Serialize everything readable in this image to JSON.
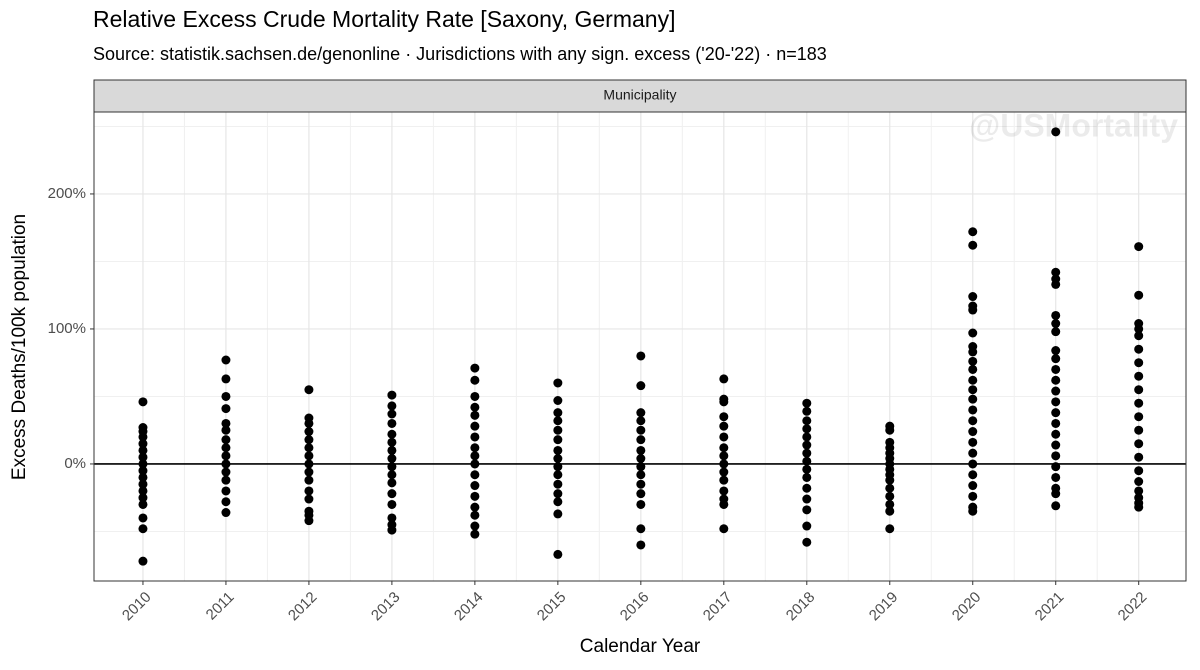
{
  "chart_data": {
    "type": "scatter",
    "title": "Relative Excess Crude Mortality Rate [Saxony, Germany]",
    "subtitle": "Source: statistik.sachsen.de/genonline · Jurisdictions with any sign. excess ('20-'22) · n=183",
    "facet_label": "Municipality",
    "watermark": "@USMortality",
    "x_label": "Calendar Year",
    "y_label": "Excess Deaths/100k population",
    "color": "#000000",
    "grid": true,
    "hline": 0,
    "xlim": [
      2009.41,
      2022.57
    ],
    "ylim": [
      -86.7,
      260.7
    ],
    "xticks": [
      2010,
      2011,
      2012,
      2013,
      2014,
      2015,
      2016,
      2017,
      2018,
      2019,
      2020,
      2021,
      2022
    ],
    "yticks": [
      {
        "value": 0,
        "label": "0%"
      },
      {
        "value": 100,
        "label": "100%"
      },
      {
        "value": 200,
        "label": "200%"
      }
    ],
    "y_minor_ticks": [
      -50,
      50,
      150,
      250
    ],
    "groups": [
      {
        "x": 2010,
        "values": [
          46,
          27,
          24,
          20,
          15,
          10,
          5,
          0,
          -5,
          -10,
          -15,
          -20,
          -25,
          -30,
          -40,
          -48,
          -72
        ]
      },
      {
        "x": 2011,
        "values": [
          77,
          63,
          50,
          41,
          30,
          25,
          18,
          12,
          6,
          0,
          -6,
          -12,
          -20,
          -28,
          -36
        ]
      },
      {
        "x": 2012,
        "values": [
          55,
          34,
          30,
          24,
          18,
          12,
          6,
          0,
          -6,
          -12,
          -20,
          -26,
          -35,
          -38,
          -42
        ]
      },
      {
        "x": 2013,
        "values": [
          51,
          43,
          37,
          30,
          22,
          16,
          10,
          4,
          -2,
          -8,
          -14,
          -22,
          -30,
          -40,
          -45,
          -49
        ]
      },
      {
        "x": 2014,
        "values": [
          71,
          62,
          50,
          42,
          36,
          28,
          20,
          12,
          6,
          0,
          -8,
          -16,
          -24,
          -32,
          -38,
          -46,
          -52
        ]
      },
      {
        "x": 2015,
        "values": [
          60,
          47,
          38,
          32,
          25,
          18,
          10,
          4,
          -2,
          -8,
          -15,
          -22,
          -28,
          -37,
          -67
        ]
      },
      {
        "x": 2016,
        "values": [
          80,
          58,
          38,
          32,
          25,
          18,
          10,
          4,
          -2,
          -8,
          -15,
          -22,
          -30,
          -48,
          -60
        ]
      },
      {
        "x": 2017,
        "values": [
          63,
          48,
          46,
          35,
          28,
          20,
          12,
          6,
          0,
          -6,
          -12,
          -20,
          -26,
          -30,
          -48
        ]
      },
      {
        "x": 2018,
        "values": [
          45,
          39,
          32,
          26,
          20,
          14,
          8,
          2,
          -4,
          -10,
          -18,
          -26,
          -34,
          -46,
          -58
        ]
      },
      {
        "x": 2019,
        "values": [
          28,
          25,
          16,
          12,
          8,
          4,
          0,
          -4,
          -8,
          -12,
          -18,
          -24,
          -30,
          -35,
          -48
        ]
      },
      {
        "x": 2020,
        "values": [
          172,
          162,
          124,
          117,
          114,
          97,
          87,
          83,
          76,
          70,
          62,
          55,
          48,
          40,
          32,
          24,
          16,
          8,
          0,
          -8,
          -16,
          -24,
          -32,
          -35
        ]
      },
      {
        "x": 2021,
        "values": [
          246,
          142,
          137,
          133,
          110,
          104,
          98,
          84,
          78,
          70,
          62,
          54,
          46,
          38,
          30,
          22,
          14,
          6,
          -2,
          -10,
          -18,
          -22,
          -31
        ]
      },
      {
        "x": 2022,
        "values": [
          161,
          125,
          104,
          100,
          95,
          85,
          75,
          65,
          55,
          45,
          35,
          25,
          15,
          5,
          -5,
          -13,
          -20,
          -25,
          -29,
          -32
        ]
      }
    ]
  }
}
